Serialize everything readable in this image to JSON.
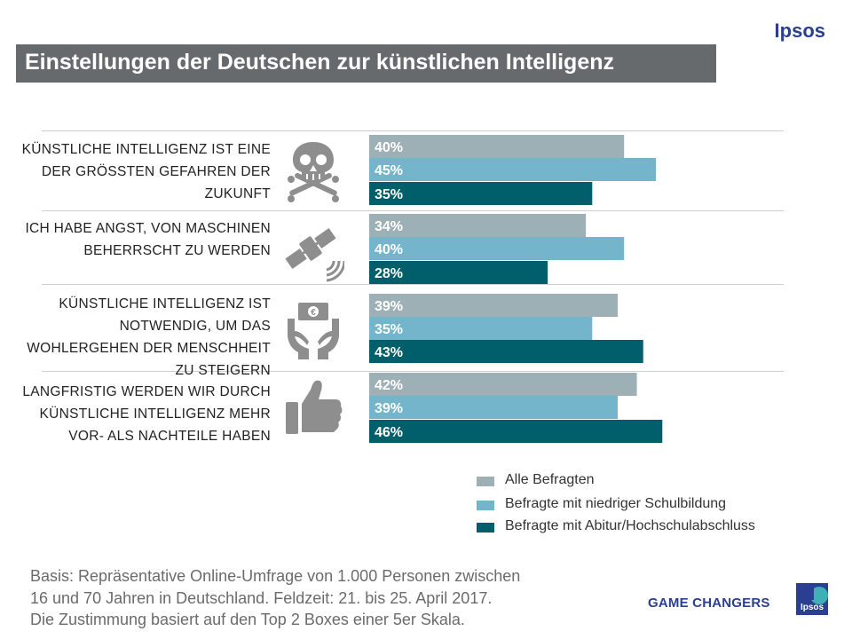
{
  "header": {
    "brand": "Ipsos",
    "title": "Einstellungen der Deutschen zur künstlichen Intelligenz"
  },
  "colors": {
    "title_bg": "#666a6d",
    "series_all": "#9db0b5",
    "series_low": "#74b5cc",
    "series_high": "#005f6a",
    "icon": "#8e8e8e",
    "brand": "#2a3f8f"
  },
  "questions": [
    {
      "label": "Künstliche Intelligenz ist eine der grössten Gefahren der Zukunft",
      "icon": "skull-crossbones-icon"
    },
    {
      "label": "Ich habe Angst, von Maschinen beherrscht zu werden",
      "icon": "satellite-icon"
    },
    {
      "label": "Künstliche Intelligenz ist notwendig, um das Wohlergehen der Menschheit zu steigern",
      "icon": "hands-money-icon"
    },
    {
      "label": "Langfristig werden wir durch künstliche Intelligenz mehr Vor- als Nachteile haben",
      "icon": "thumbs-up-icon"
    }
  ],
  "chart_data": {
    "type": "bar",
    "orientation": "horizontal",
    "title": "Einstellungen der Deutschen zur künstlichen Intelligenz",
    "categories": [
      "KÜNSTLICHE INTELLIGENZ IST EINE DER GRÖSSTEN GEFAHREN DER ZUKUNFT",
      "ICH HABE ANGST, VON MASCHINEN BEHERRSCHT ZU WERDEN",
      "KÜNSTLICHE INTELLIGENZ IST NOTWENDIG, UM DAS WOHLERGEHEN DER MENSCHHEIT ZU STEIGERN",
      "LANGFRISTIG WERDEN WIR DURCH KÜNSTLICHE INTELLIGENZ MEHR VOR- ALS NACHTEILE HABEN"
    ],
    "series": [
      {
        "name": "Alle Befragten",
        "color": "#9db0b5",
        "values": [
          40,
          34,
          39,
          42
        ]
      },
      {
        "name": "Befragte mit niedriger Schulbildung",
        "color": "#74b5cc",
        "values": [
          45,
          40,
          35,
          39
        ]
      },
      {
        "name": "Befragte mit Abitur/Hochschulabschluss",
        "color": "#005f6a",
        "values": [
          35,
          28,
          43,
          46
        ]
      }
    ],
    "value_suffix": "%",
    "xlim": [
      0,
      100
    ],
    "legend_position": "bottom-right",
    "grid": false
  },
  "legend": [
    {
      "label": "Alle Befragten"
    },
    {
      "label": "Befragte mit niedriger Schulbildung"
    },
    {
      "label": "Befragte mit Abitur/Hochschulabschluss"
    }
  ],
  "footer": {
    "basis_line1": "Basis: Repräsentative Online-Umfrage von 1.000 Personen zwischen",
    "basis_line2": "16 und 70 Jahren in Deutschland. Feldzeit: 21. bis 25. April 2017.",
    "basis_line3": "Die Zustimmung basiert auf den Top 2 Boxes einer 5er Skala.",
    "tagline": "GAME CHANGERS",
    "logo_text": "Ipsos"
  }
}
